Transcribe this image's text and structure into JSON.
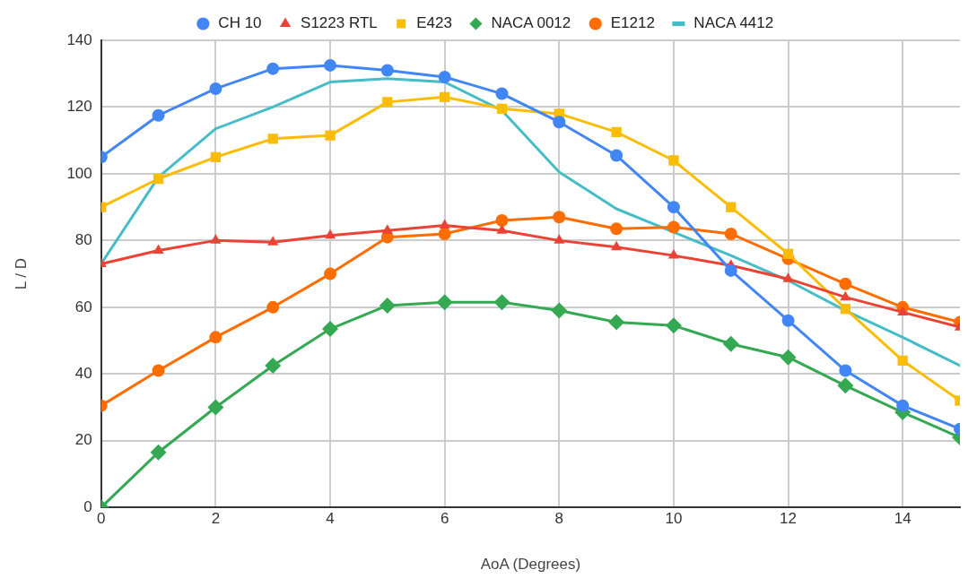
{
  "chart_data": {
    "type": "line",
    "xlabel": "AoA (Degrees)",
    "ylabel": "L / D",
    "x": [
      0,
      1,
      2,
      3,
      4,
      5,
      6,
      7,
      8,
      9,
      10,
      11,
      12,
      13,
      14,
      15
    ],
    "xlim": [
      0,
      15
    ],
    "xticks": [
      0,
      2,
      4,
      6,
      8,
      10,
      12,
      14
    ],
    "ylim": [
      0,
      140
    ],
    "yticks": [
      0,
      20,
      40,
      60,
      80,
      100,
      120,
      140
    ],
    "grid": true,
    "legend": "top",
    "line_style": "solid",
    "series": [
      {
        "name": "CH 10",
        "color": "#4285f4",
        "marker": "circle",
        "values": [
          105,
          117.5,
          125.5,
          131.5,
          132.5,
          131,
          129,
          124,
          115.5,
          105.5,
          90,
          71,
          56,
          41,
          30.5,
          23.5
        ]
      },
      {
        "name": "S1223 RTL",
        "color": "#ea4335",
        "marker": "triangle",
        "values": [
          73,
          77,
          80,
          79.5,
          81.5,
          83,
          84.5,
          83,
          80,
          78,
          75.5,
          72.5,
          68.5,
          63,
          58.5,
          54
        ]
      },
      {
        "name": "E423",
        "color": "#fbbc04",
        "marker": "square",
        "values": [
          90,
          98.5,
          105,
          110.5,
          111.5,
          121.5,
          123,
          119.5,
          118,
          112.5,
          104,
          90,
          76,
          59.5,
          44,
          32
        ]
      },
      {
        "name": "NACA 0012",
        "color": "#34a853",
        "marker": "diamond",
        "values": [
          0,
          16.5,
          30,
          42.5,
          53.5,
          60.5,
          61.5,
          61.5,
          59,
          55.5,
          54.5,
          49,
          45,
          36.5,
          28.5,
          21
        ]
      },
      {
        "name": "E1212",
        "color": "#ff6d01",
        "marker": "circle",
        "values": [
          30.5,
          41,
          51,
          60,
          70,
          81,
          82,
          86,
          87,
          83.5,
          84,
          82,
          74.5,
          67,
          60,
          55.5
        ]
      },
      {
        "name": "NACA 4412",
        "color": "#46bdc6",
        "marker": "none",
        "values": [
          73,
          99,
          113.5,
          120,
          127.5,
          128.5,
          127.5,
          119,
          100.5,
          89.5,
          82.5,
          75.5,
          68,
          59,
          51,
          42.5
        ]
      }
    ]
  }
}
